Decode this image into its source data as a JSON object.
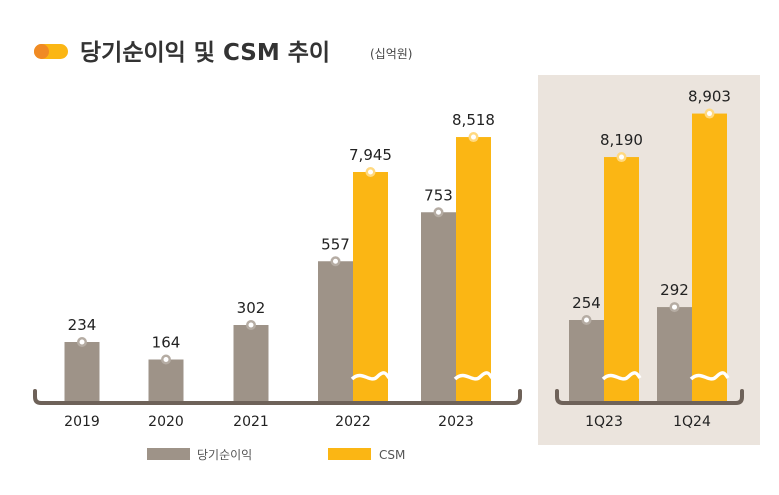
{
  "chart_data": {
    "type": "bar",
    "title": "당기순이익 및 CSM 추이",
    "unit": "(십억원)",
    "colors": {
      "net_income": "#9e9388",
      "csm": "#fbb614",
      "panel_bg": "#ebe4dd",
      "axis": "#6e6259",
      "title_pill": "#fbb614",
      "title_dot": "#f08a24"
    },
    "axis_break": true,
    "legend_position": "bottom",
    "series": [
      {
        "name": "당기순이익",
        "key": "net_income"
      },
      {
        "name": "CSM",
        "key": "csm"
      }
    ],
    "panels": [
      {
        "categories": [
          "2019",
          "2020",
          "2021",
          "2022",
          "2023"
        ],
        "net_income": [
          234,
          164,
          302,
          557,
          753
        ],
        "net_income_labels": [
          "234",
          "164",
          "302",
          "557",
          "753"
        ],
        "csm": [
          null,
          null,
          null,
          7945,
          8518
        ],
        "csm_labels": [
          "",
          "",
          "",
          "7,945",
          "8,518"
        ]
      },
      {
        "categories": [
          "1Q23",
          "1Q24"
        ],
        "net_income": [
          254,
          292
        ],
        "net_income_labels": [
          "254",
          "292"
        ],
        "csm": [
          8190,
          8903
        ],
        "csm_labels": [
          "8,190",
          "8,903"
        ],
        "highlighted": true
      }
    ]
  }
}
